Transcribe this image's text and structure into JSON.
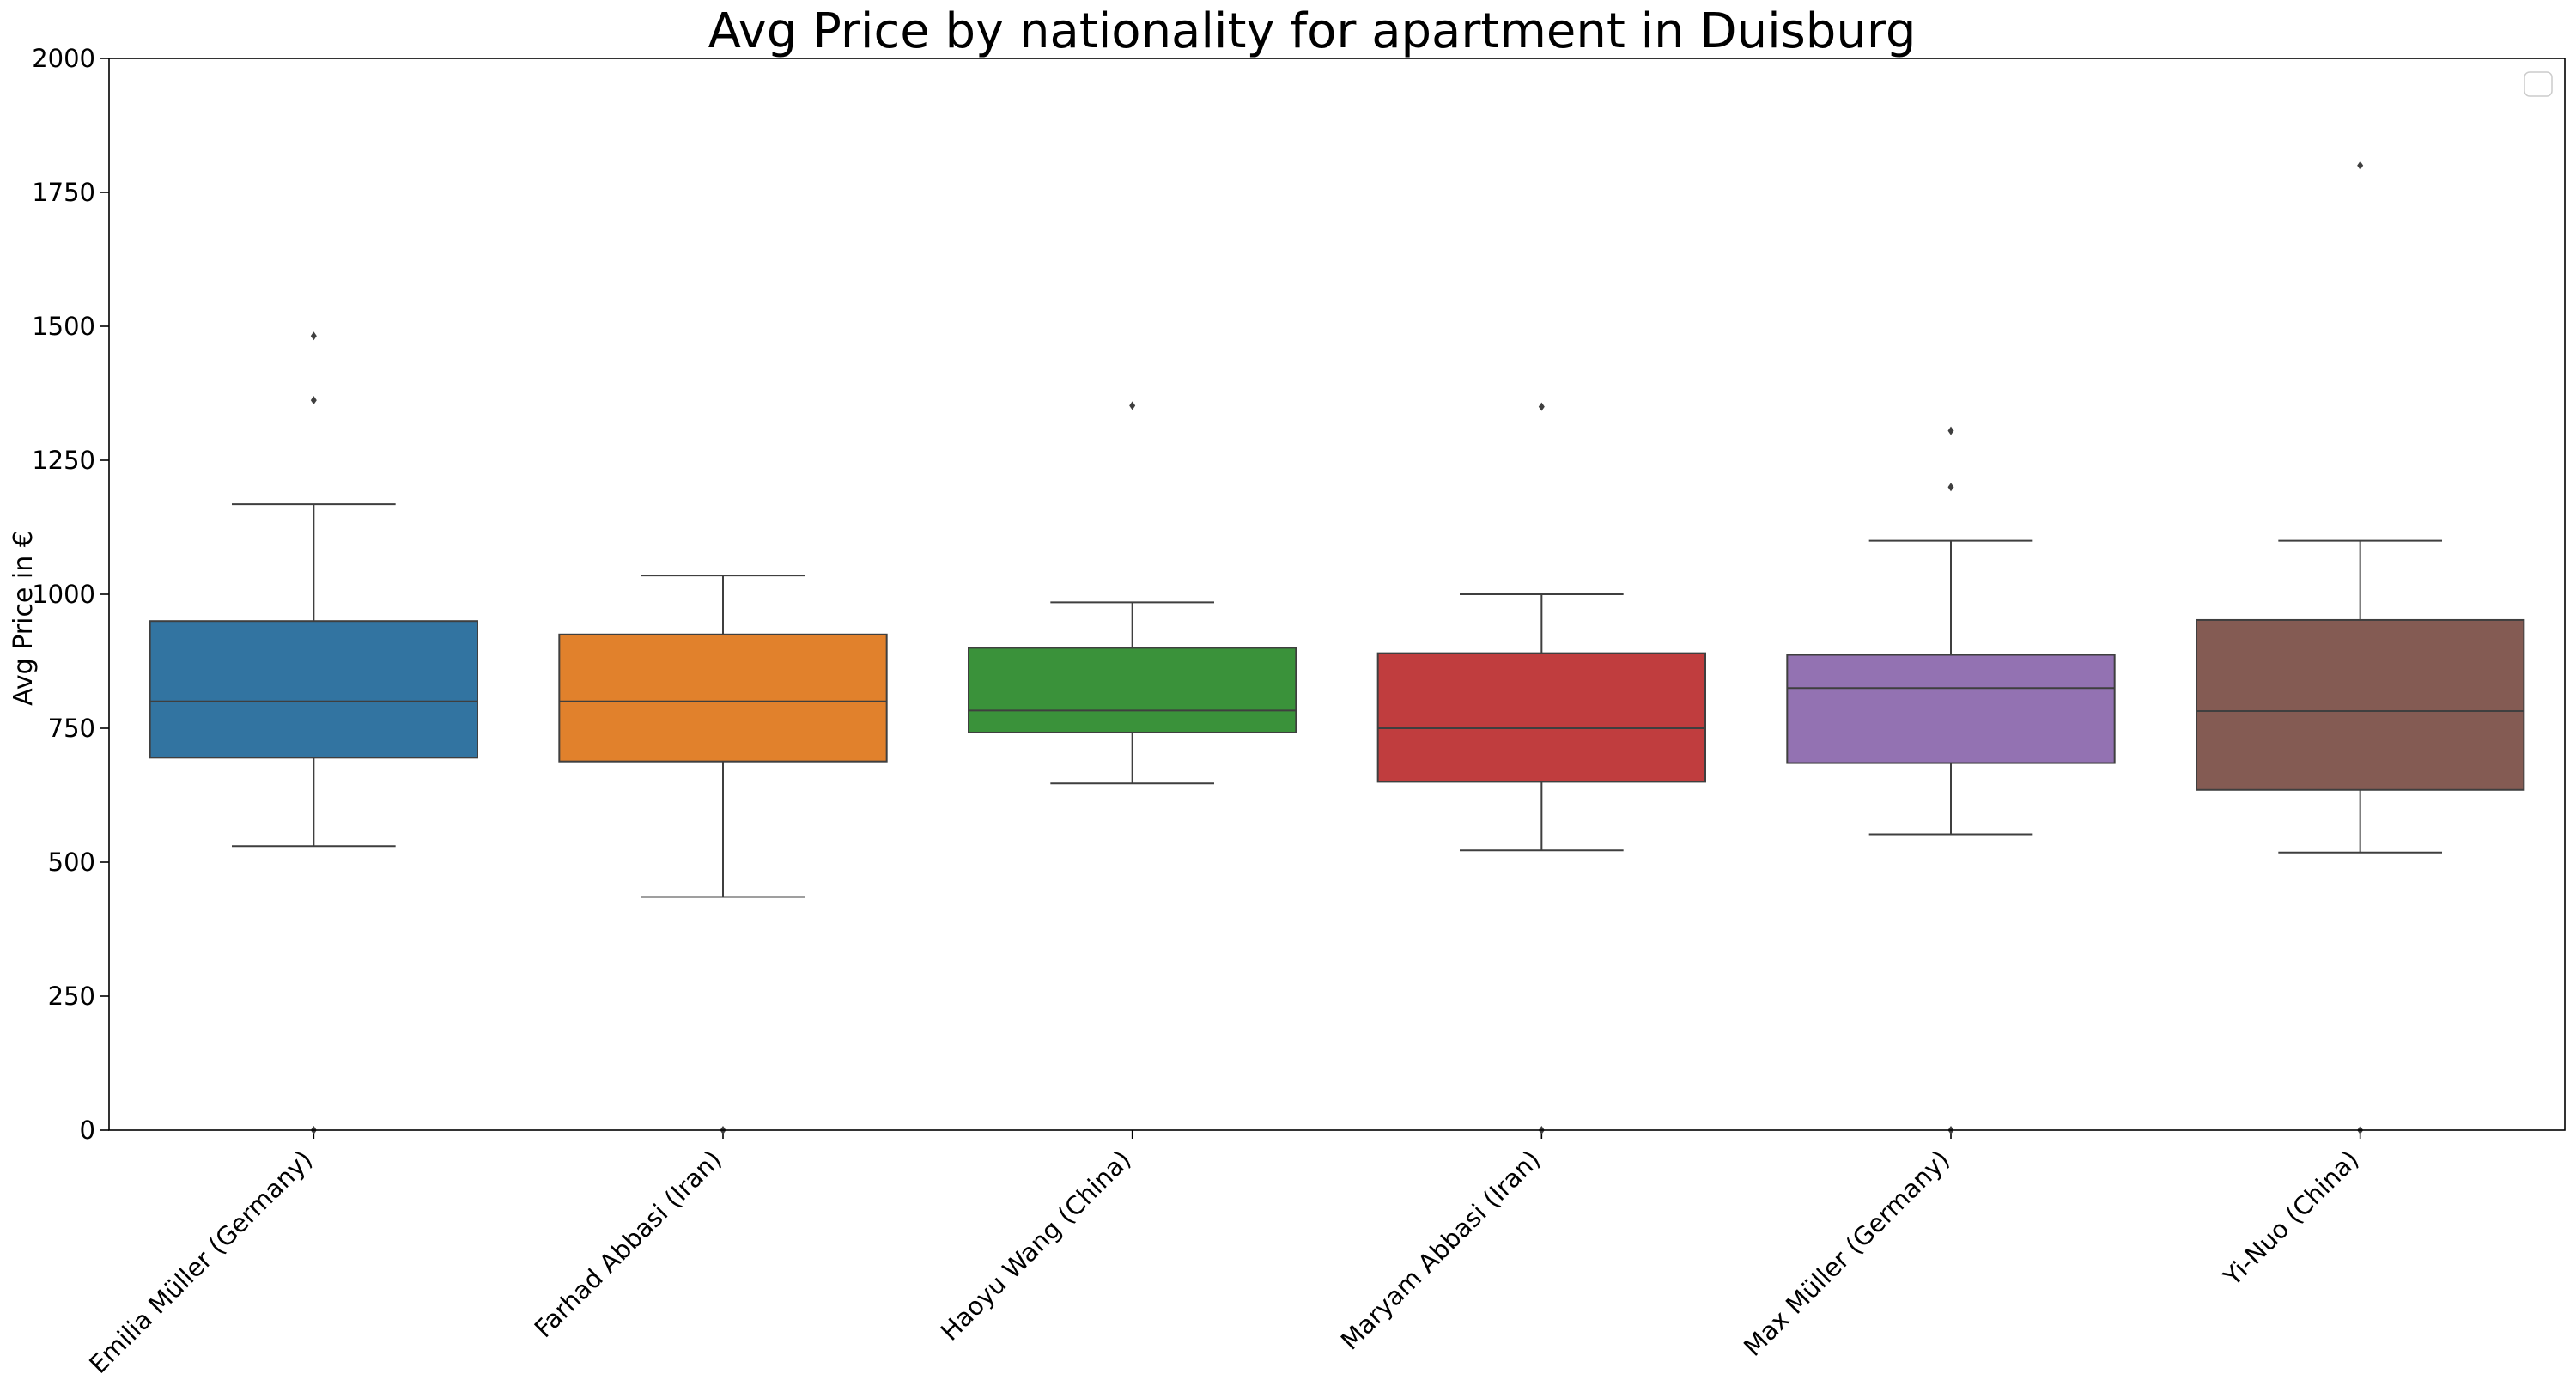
{
  "chart_data": {
    "type": "box",
    "title": "Avg Price by nationality for apartment in Duisburg",
    "xlabel": "",
    "ylabel": "Avg Price in €",
    "ylim": [
      0,
      2000
    ],
    "yticks": [
      0,
      250,
      500,
      750,
      1000,
      1250,
      1500,
      1750,
      2000
    ],
    "grid": false,
    "legend": {
      "placement": "top-right",
      "entries": []
    },
    "categories": [
      "Emilia Müller (Germany)",
      "Farhad Abbasi (Iran)",
      "Haoyu Wang (China)",
      "Maryam Abbasi (Iran)",
      "Max Müller (Germany)",
      "Yi-Nuo (China)"
    ],
    "boxes": [
      {
        "category": "Emilia Müller (Germany)",
        "color": "#3274a1",
        "whisker_low": 530,
        "q1": 695,
        "median": 800,
        "q3": 950,
        "whisker_high": 1168,
        "outliers": [
          1482,
          1362,
          0
        ]
      },
      {
        "category": "Farhad Abbasi (Iran)",
        "color": "#e1812c",
        "whisker_low": 435,
        "q1": 688,
        "median": 800,
        "q3": 925,
        "whisker_high": 1035,
        "outliers": [
          0
        ]
      },
      {
        "category": "Haoyu Wang (China)",
        "color": "#3a923a",
        "whisker_low": 647,
        "q1": 742,
        "median": 783,
        "q3": 900,
        "whisker_high": 985,
        "outliers": [
          1352
        ]
      },
      {
        "category": "Maryam Abbasi (Iran)",
        "color": "#c03d3e",
        "whisker_low": 522,
        "q1": 650,
        "median": 750,
        "q3": 890,
        "whisker_high": 1000,
        "outliers": [
          1350,
          0
        ]
      },
      {
        "category": "Max Müller (Germany)",
        "color": "#9372b2",
        "whisker_low": 552,
        "q1": 685,
        "median": 825,
        "q3": 887,
        "whisker_high": 1100,
        "outliers": [
          1305,
          1200,
          0
        ]
      },
      {
        "category": "Yi-Nuo (China)",
        "color": "#845b53",
        "whisker_low": 518,
        "q1": 635,
        "median": 782,
        "q3": 952,
        "whisker_high": 1100,
        "outliers": [
          1800,
          0
        ]
      }
    ]
  }
}
